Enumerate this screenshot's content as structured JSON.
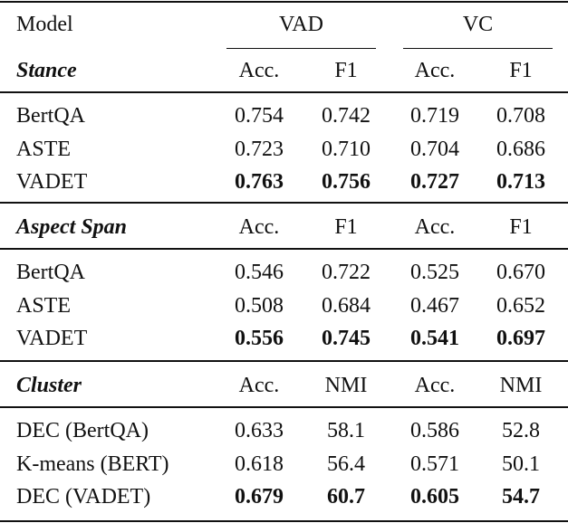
{
  "table": {
    "header": {
      "model": "Model",
      "groups": [
        "VAD",
        "VC"
      ]
    },
    "sections": [
      {
        "title": "Stance",
        "columns": [
          "Acc.",
          "F1",
          "Acc.",
          "F1"
        ],
        "rows": [
          {
            "name": "BertQA",
            "values": [
              "0.754",
              "0.742",
              "0.719",
              "0.708"
            ],
            "bold": false
          },
          {
            "name": "ASTE",
            "values": [
              "0.723",
              "0.710",
              "0.704",
              "0.686"
            ],
            "bold": false
          },
          {
            "name": "VADET",
            "values": [
              "0.763",
              "0.756",
              "0.727",
              "0.713"
            ],
            "bold": true
          }
        ]
      },
      {
        "title": "Aspect Span",
        "columns": [
          "Acc.",
          "F1",
          "Acc.",
          "F1"
        ],
        "rows": [
          {
            "name": "BertQA",
            "values": [
              "0.546",
              "0.722",
              "0.525",
              "0.670"
            ],
            "bold": false
          },
          {
            "name": "ASTE",
            "values": [
              "0.508",
              "0.684",
              "0.467",
              "0.652"
            ],
            "bold": false
          },
          {
            "name": "VADET",
            "values": [
              "0.556",
              "0.745",
              "0.541",
              "0.697"
            ],
            "bold": true
          }
        ]
      },
      {
        "title": "Cluster",
        "columns": [
          "Acc.",
          "NMI",
          "Acc.",
          "NMI"
        ],
        "rows": [
          {
            "name": "DEC (BertQA)",
            "values": [
              "0.633",
              "58.1",
              "0.586",
              "52.8"
            ],
            "bold": false
          },
          {
            "name": "K-means (BERT)",
            "values": [
              "0.618",
              "56.4",
              "0.571",
              "50.1"
            ],
            "bold": false
          },
          {
            "name": "DEC (VADET)",
            "values": [
              "0.679",
              "60.7",
              "0.605",
              "54.7"
            ],
            "bold": true
          }
        ]
      }
    ]
  }
}
